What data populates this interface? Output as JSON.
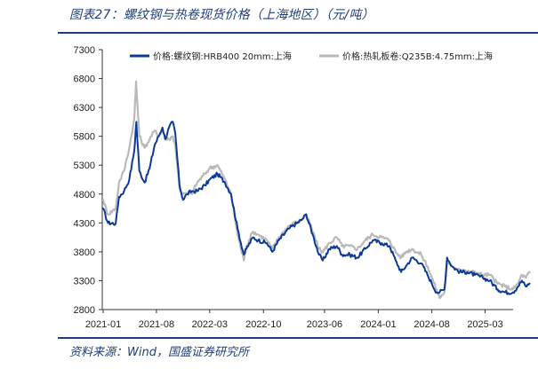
{
  "header": {
    "title": "图表27：螺纹钢与热卷现货价格（上海地区）（元/吨）"
  },
  "footer": {
    "source": "资料来源：Wind，国盛证券研究所"
  },
  "colors": {
    "series1": "#0d3a94",
    "series2": "#b9b9b9",
    "accent": "#1f3d7a"
  },
  "chart_data": {
    "type": "line",
    "ylim": [
      2800,
      7300
    ],
    "yticks": [
      "7300",
      "6800",
      "6300",
      "5800",
      "5300",
      "4800",
      "4300",
      "3800",
      "3300",
      "2800"
    ],
    "xticks": [
      "2021-01",
      "2021-08",
      "2022-03",
      "2022-10",
      "2023-06",
      "2024-01",
      "2024-08",
      "2025-03"
    ],
    "legend_position": "top",
    "series": [
      {
        "name": "价格:螺纹钢:HRB400 20mm:上海",
        "color": "#0d3a94",
        "points": [
          [
            "2021-01-01",
            4550
          ],
          [
            "2021-01-20",
            4300
          ],
          [
            "2021-02-20",
            4290
          ],
          [
            "2021-03-05",
            4750
          ],
          [
            "2021-03-25",
            4850
          ],
          [
            "2021-04-15",
            5050
          ],
          [
            "2021-05-05",
            5550
          ],
          [
            "2021-05-13",
            6050
          ],
          [
            "2021-05-25",
            5200
          ],
          [
            "2021-06-15",
            5000
          ],
          [
            "2021-07-05",
            5250
          ],
          [
            "2021-07-25",
            5650
          ],
          [
            "2021-08-10",
            5800
          ],
          [
            "2021-08-25",
            5950
          ],
          [
            "2021-09-05",
            5750
          ],
          [
            "2021-09-20",
            5950
          ],
          [
            "2021-10-05",
            6050
          ],
          [
            "2021-10-15",
            5850
          ],
          [
            "2021-11-01",
            4950
          ],
          [
            "2021-11-15",
            4700
          ],
          [
            "2021-12-01",
            4800
          ],
          [
            "2021-12-20",
            4850
          ],
          [
            "2022-01-10",
            4850
          ],
          [
            "2022-02-10",
            4950
          ],
          [
            "2022-03-01",
            5050
          ],
          [
            "2022-04-01",
            5150
          ],
          [
            "2022-05-01",
            5000
          ],
          [
            "2022-05-25",
            4800
          ],
          [
            "2022-06-20",
            4200
          ],
          [
            "2022-07-15",
            3750
          ],
          [
            "2022-07-25",
            3850
          ],
          [
            "2022-08-20",
            4050
          ],
          [
            "2022-09-10",
            4000
          ],
          [
            "2022-10-15",
            3950
          ],
          [
            "2022-11-05",
            3800
          ],
          [
            "2022-12-01",
            4000
          ],
          [
            "2023-01-10",
            4200
          ],
          [
            "2023-03-01",
            4350
          ],
          [
            "2023-03-20",
            4450
          ],
          [
            "2023-04-15",
            4100
          ],
          [
            "2023-05-10",
            3750
          ],
          [
            "2023-05-25",
            3650
          ],
          [
            "2023-06-20",
            3850
          ],
          [
            "2023-07-20",
            3900
          ],
          [
            "2023-08-10",
            3750
          ],
          [
            "2023-09-10",
            3750
          ],
          [
            "2023-10-10",
            3700
          ],
          [
            "2023-11-10",
            3850
          ],
          [
            "2023-12-10",
            4000
          ],
          [
            "2024-01-15",
            3950
          ],
          [
            "2024-02-15",
            3900
          ],
          [
            "2024-03-10",
            3650
          ],
          [
            "2024-04-01",
            3450
          ],
          [
            "2024-04-20",
            3550
          ],
          [
            "2024-05-15",
            3700
          ],
          [
            "2024-06-20",
            3600
          ],
          [
            "2024-07-15",
            3400
          ],
          [
            "2024-08-01",
            3250
          ],
          [
            "2024-08-20",
            3100
          ],
          [
            "2024-09-01",
            3100
          ],
          [
            "2024-09-20",
            3150
          ],
          [
            "2024-10-01",
            3700
          ],
          [
            "2024-10-20",
            3550
          ],
          [
            "2024-11-20",
            3450
          ],
          [
            "2024-12-20",
            3450
          ],
          [
            "2025-01-20",
            3400
          ],
          [
            "2025-02-20",
            3350
          ],
          [
            "2025-03-20",
            3300
          ],
          [
            "2025-04-20",
            3150
          ],
          [
            "2025-05-20",
            3100
          ],
          [
            "2025-06-20",
            3100
          ],
          [
            "2025-07-10",
            3200
          ],
          [
            "2025-07-25",
            3300
          ],
          [
            "2025-08-10",
            3200
          ],
          [
            "2025-08-25",
            3250
          ]
        ]
      },
      {
        "name": "价格:热轧板卷:Q235B:4.75mm:上海",
        "color": "#b9b9b9",
        "points": [
          [
            "2021-01-01",
            4700
          ],
          [
            "2021-01-20",
            4450
          ],
          [
            "2021-02-20",
            4550
          ],
          [
            "2021-03-05",
            5000
          ],
          [
            "2021-03-25",
            5200
          ],
          [
            "2021-04-15",
            5600
          ],
          [
            "2021-05-05",
            6100
          ],
          [
            "2021-05-12",
            6750
          ],
          [
            "2021-05-25",
            5800
          ],
          [
            "2021-06-15",
            5600
          ],
          [
            "2021-07-05",
            5750
          ],
          [
            "2021-07-25",
            5900
          ],
          [
            "2021-08-10",
            5800
          ],
          [
            "2021-08-25",
            5950
          ],
          [
            "2021-09-05",
            5750
          ],
          [
            "2021-09-20",
            5750
          ],
          [
            "2021-10-05",
            5800
          ],
          [
            "2021-10-15",
            5650
          ],
          [
            "2021-11-01",
            4900
          ],
          [
            "2021-11-15",
            4800
          ],
          [
            "2021-12-01",
            4800
          ],
          [
            "2021-12-20",
            4800
          ],
          [
            "2022-01-10",
            5000
          ],
          [
            "2022-02-10",
            5150
          ],
          [
            "2022-03-01",
            5250
          ],
          [
            "2022-04-01",
            5300
          ],
          [
            "2022-05-01",
            5050
          ],
          [
            "2022-05-25",
            4800
          ],
          [
            "2022-06-20",
            4100
          ],
          [
            "2022-07-15",
            3650
          ],
          [
            "2022-07-25",
            3900
          ],
          [
            "2022-08-20",
            4150
          ],
          [
            "2022-09-10",
            4100
          ],
          [
            "2022-10-15",
            4000
          ],
          [
            "2022-11-05",
            3850
          ],
          [
            "2022-12-01",
            4050
          ],
          [
            "2023-01-10",
            4250
          ],
          [
            "2023-03-01",
            4350
          ],
          [
            "2023-03-20",
            4450
          ],
          [
            "2023-04-15",
            4150
          ],
          [
            "2023-05-10",
            3850
          ],
          [
            "2023-05-25",
            3800
          ],
          [
            "2023-06-20",
            3950
          ],
          [
            "2023-07-20",
            4050
          ],
          [
            "2023-08-10",
            3900
          ],
          [
            "2023-09-10",
            3900
          ],
          [
            "2023-10-10",
            3850
          ],
          [
            "2023-11-10",
            4000
          ],
          [
            "2023-12-10",
            4100
          ],
          [
            "2024-01-15",
            4050
          ],
          [
            "2024-02-15",
            4000
          ],
          [
            "2024-03-10",
            3800
          ],
          [
            "2024-04-01",
            3700
          ],
          [
            "2024-04-20",
            3800
          ],
          [
            "2024-05-15",
            3850
          ],
          [
            "2024-06-20",
            3750
          ],
          [
            "2024-07-15",
            3550
          ],
          [
            "2024-08-01",
            3350
          ],
          [
            "2024-08-20",
            3150
          ],
          [
            "2024-09-01",
            3000
          ],
          [
            "2024-09-20",
            3100
          ],
          [
            "2024-10-01",
            3600
          ],
          [
            "2024-10-20",
            3550
          ],
          [
            "2024-11-20",
            3500
          ],
          [
            "2024-12-20",
            3450
          ],
          [
            "2025-01-20",
            3450
          ],
          [
            "2025-02-20",
            3400
          ],
          [
            "2025-03-20",
            3400
          ],
          [
            "2025-04-20",
            3250
          ],
          [
            "2025-05-20",
            3200
          ],
          [
            "2025-06-20",
            3150
          ],
          [
            "2025-07-10",
            3250
          ],
          [
            "2025-07-25",
            3400
          ],
          [
            "2025-08-10",
            3350
          ],
          [
            "2025-08-25",
            3450
          ]
        ]
      }
    ]
  }
}
